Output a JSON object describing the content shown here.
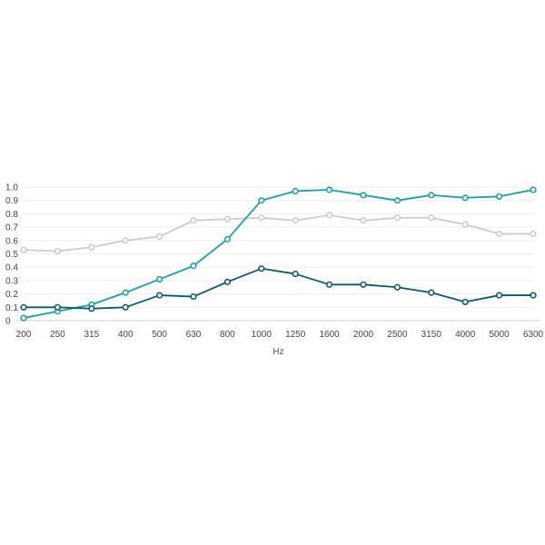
{
  "chart_data": {
    "type": "line",
    "xlabel": "Hz",
    "ylabel": "",
    "ylim": [
      0,
      1.0
    ],
    "yticks": [
      "0",
      "0.1",
      "0.2",
      "0.3",
      "0.4",
      "0.5",
      "0.6",
      "0.7",
      "0.8",
      "0.9",
      "1.0"
    ],
    "categories": [
      "200",
      "250",
      "315",
      "400",
      "500",
      "630",
      "800",
      "1000",
      "1250",
      "1600",
      "2000",
      "2500",
      "3150",
      "4000",
      "5000",
      "6300"
    ],
    "grid": true,
    "legend": "none",
    "series": [
      {
        "color": "#cccccc",
        "values": [
          0.53,
          0.52,
          0.55,
          0.6,
          0.63,
          0.75,
          0.76,
          0.77,
          0.75,
          0.79,
          0.75,
          0.77,
          0.77,
          0.72,
          0.65,
          0.65
        ]
      },
      {
        "color": "#17a2aa",
        "values": [
          0.02,
          0.07,
          0.12,
          0.21,
          0.31,
          0.41,
          0.61,
          0.9,
          0.97,
          0.98,
          0.94,
          0.9,
          0.94,
          0.92,
          0.93,
          0.98
        ]
      },
      {
        "color": "#0a5c6b",
        "values": [
          0.1,
          0.1,
          0.09,
          0.1,
          0.19,
          0.18,
          0.29,
          0.39,
          0.35,
          0.27,
          0.27,
          0.25,
          0.21,
          0.14,
          0.19,
          0.19
        ]
      }
    ]
  }
}
